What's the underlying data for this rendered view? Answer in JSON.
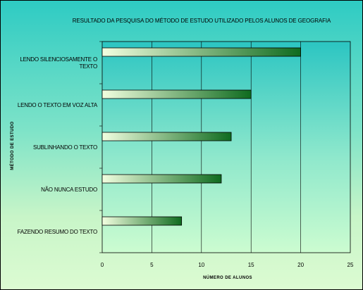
{
  "chart_data": {
    "type": "bar",
    "orientation": "horizontal",
    "title": "RESULTADO DA PESQUISA DO MÉTODO DE ESTUDO UTILIZADO PELOS ALUNOS DE GEOGRAFIA",
    "xlabel": "NÚMERO DE ALUNOS",
    "ylabel": "MÉTODO DE ESTUDO",
    "categories": [
      [
        "LENDO SILENCIOSAMENTE O",
        "TEXTO"
      ],
      [
        "LENDO O TEXTO EM VOZ ALTA"
      ],
      [
        "SUBLINHANDO O TEXTO"
      ],
      [
        "NÃO NUNCA ESTUDO"
      ],
      [
        "FAZENDO RESUMO DO TEXTO"
      ]
    ],
    "values": [
      20,
      15,
      13,
      12,
      8
    ],
    "xlim": [
      0,
      25
    ],
    "xticks": [
      "0",
      "5",
      "10",
      "15",
      "20",
      "25"
    ],
    "grid": true,
    "colors": {
      "plot_top": "#2bc5c2",
      "plot_bottom": "#ccfcd0",
      "bar_light": "#f2ffe0",
      "bar_dark": "#0f6b1f",
      "grid": "#000000"
    }
  }
}
